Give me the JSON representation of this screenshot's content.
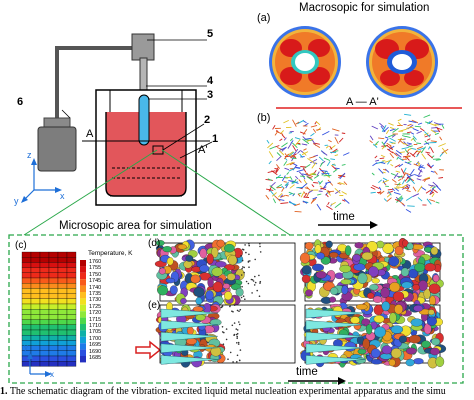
{
  "apparatus": {
    "labels": [
      "1",
      "2",
      "3",
      "4",
      "5",
      "6"
    ],
    "section_left": "A",
    "section_right": "A'",
    "axes": {
      "z": "z",
      "y": "y",
      "x": "x"
    }
  },
  "macro": {
    "title": "Macrosopic for simulation",
    "panel_a": "(a)",
    "panel_b": "(b)",
    "section_line": "A — A'",
    "time_label": "time"
  },
  "micro": {
    "title": "Microsopic area for simulation",
    "panel_c": "(c)",
    "panel_d": "(d)",
    "panel_e": "(e)",
    "time_label": "time",
    "axes": {
      "y": "y",
      "x": "x"
    }
  },
  "legend": {
    "title": "Temperature, K",
    "ticks": [
      "1760",
      "1755",
      "1750",
      "1745",
      "1740",
      "1735",
      "1730",
      "1725",
      "1720",
      "1715",
      "1710",
      "1705",
      "1700",
      "1695",
      "1690",
      "1685"
    ],
    "colors": [
      "#b40000",
      "#d81010",
      "#ee2a1a",
      "#f85a1a",
      "#fb8c1c",
      "#ffbe1e",
      "#f2e020",
      "#c6ef2a",
      "#8ee83a",
      "#4ed84a",
      "#20c070",
      "#10b0a8",
      "#10a0d8",
      "#1f7be8",
      "#2a50e0",
      "#2430c0"
    ]
  },
  "caption": {
    "prefix": "1.",
    "text": "The schematic diagram of the vibration- excited liquid metal nucleation experimental apparatus and the simu"
  }
}
